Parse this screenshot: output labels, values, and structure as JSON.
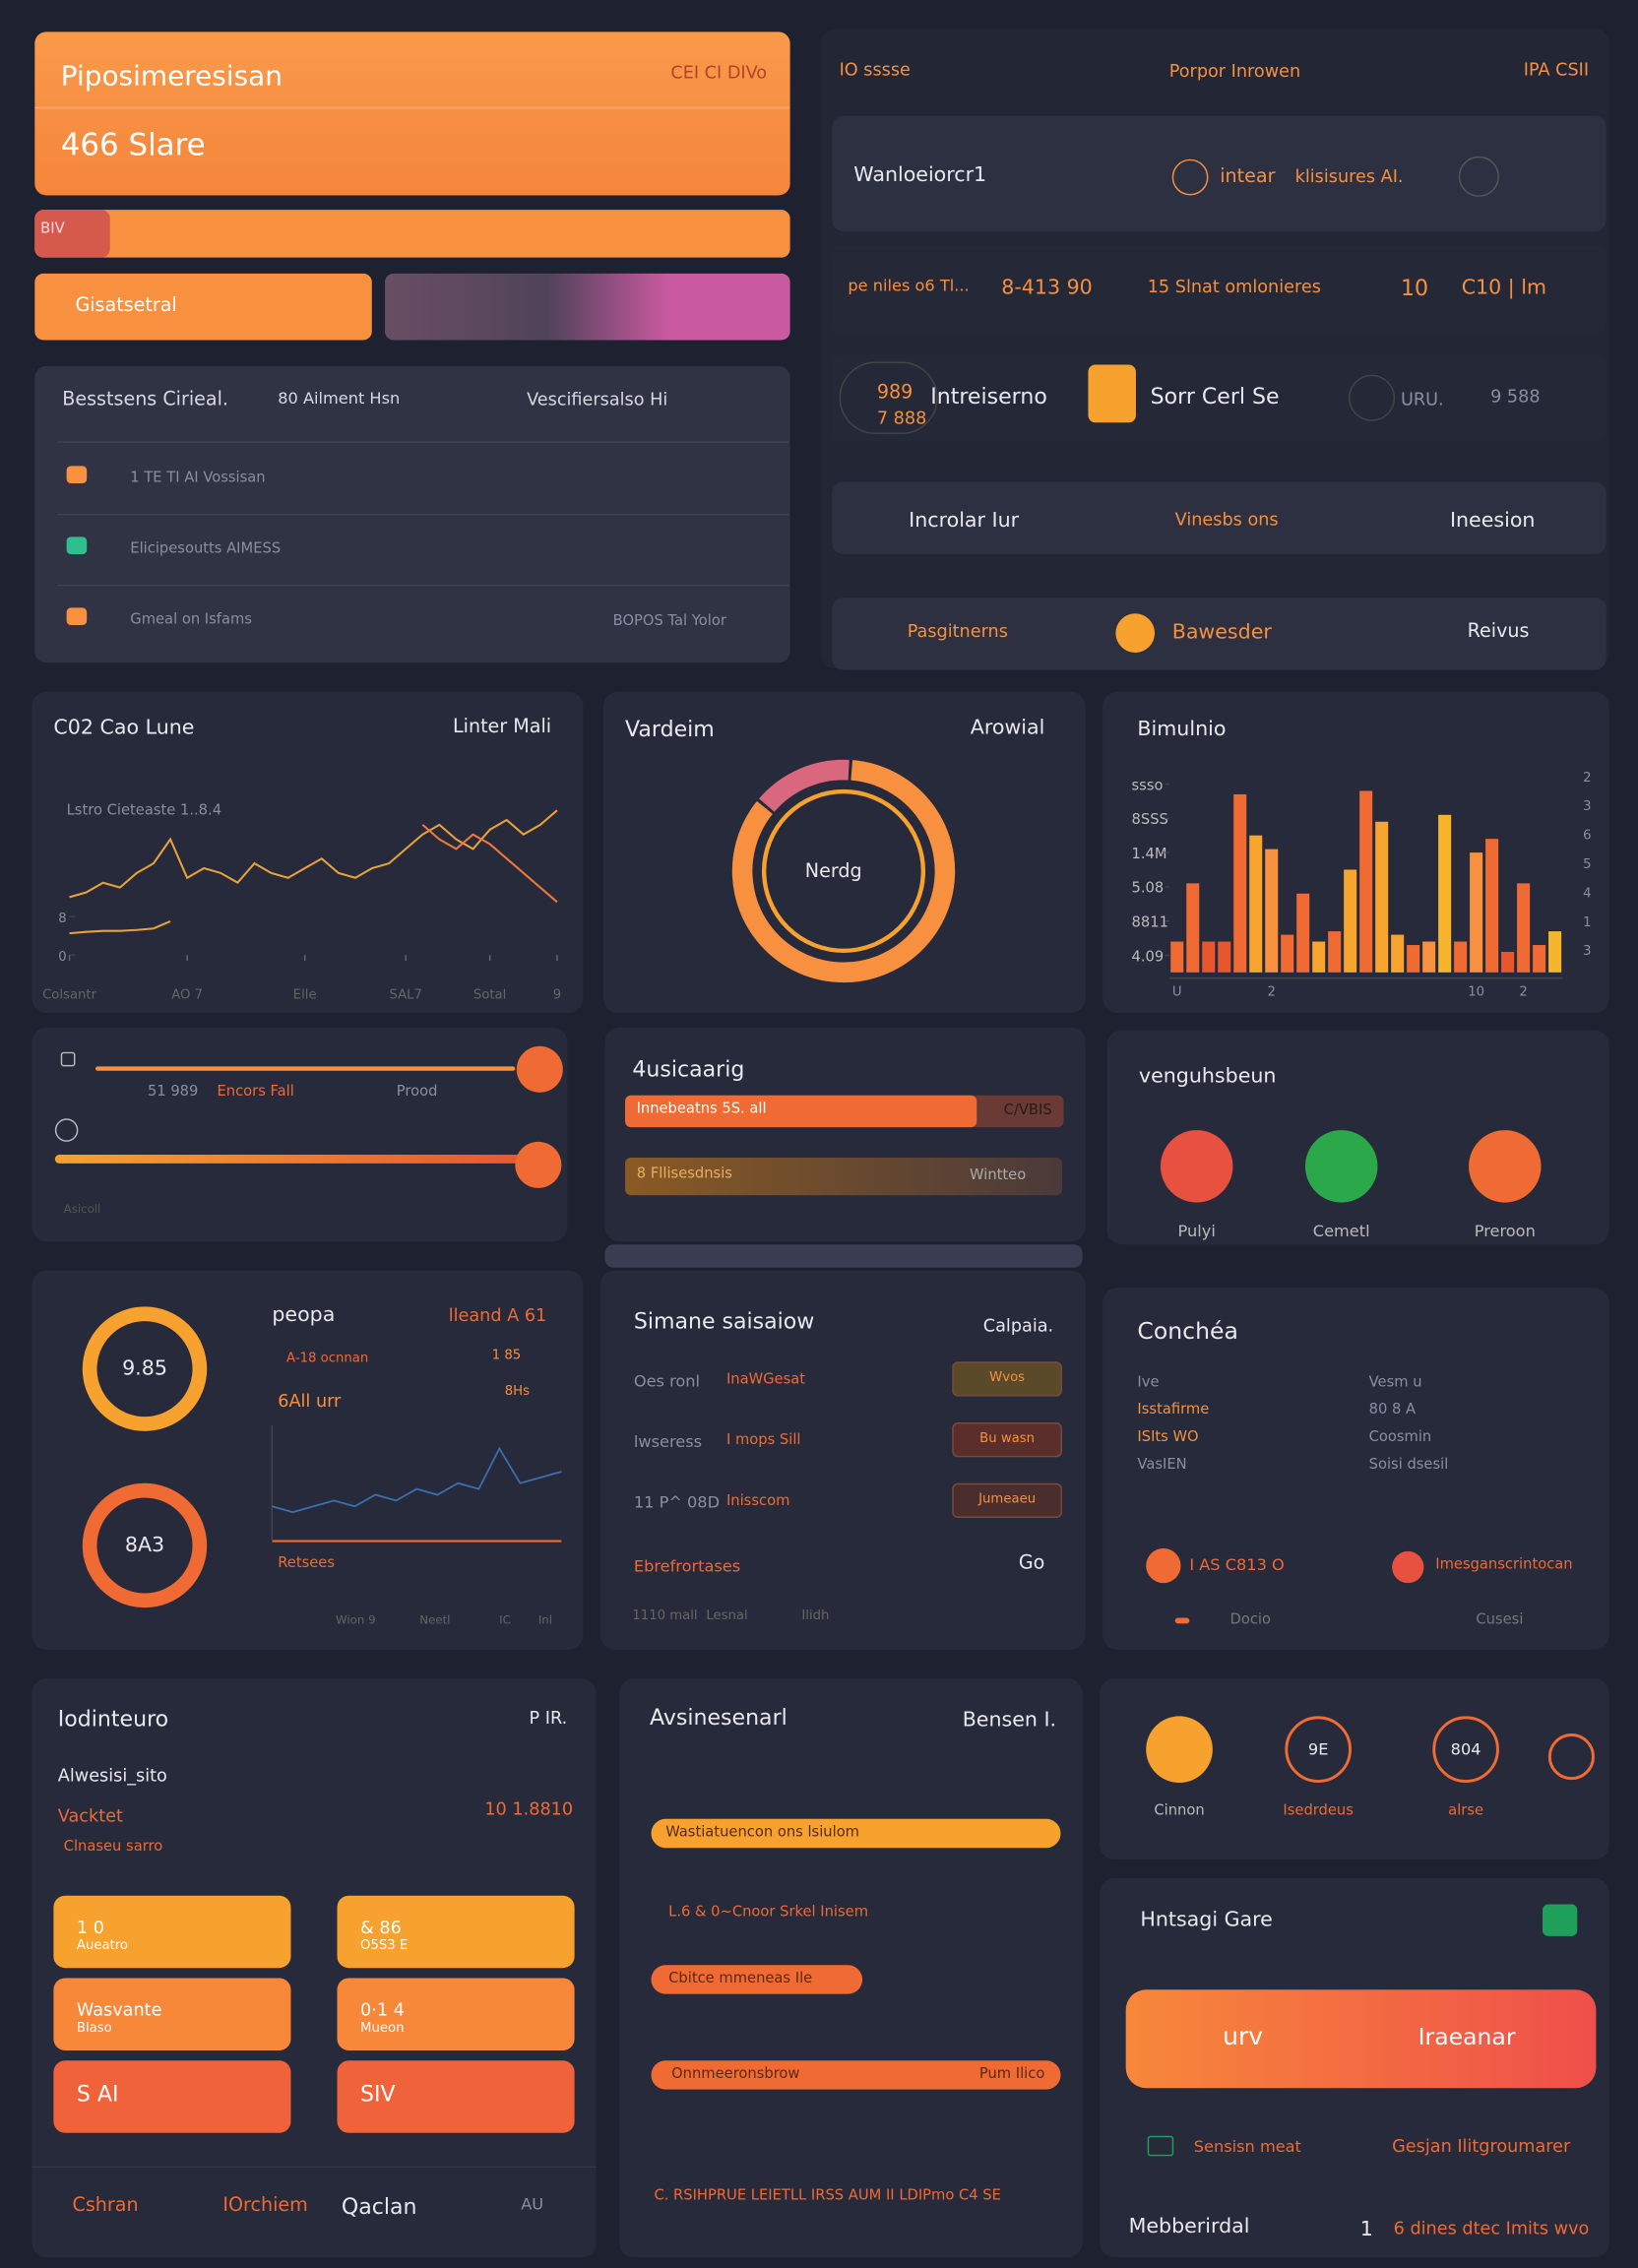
{
  "header": {
    "title": "Piposimeresisan",
    "badge": "CEI CI DIVo",
    "value": "466 Slare"
  },
  "progress_label": "BIV",
  "button": "Gisatsetral",
  "table": {
    "headers": [
      "Besstsens Cirieal.",
      "80 Ailment Hsn",
      "Vescifiersalso Hi"
    ],
    "rows": [
      "1 TE TI AI Vossisan",
      "Elicipesoutts AIMESS",
      "Gmeal on Isfams"
    ],
    "note": "BOPOS Tal Yolor"
  },
  "top_right": {
    "tabs": [
      "IO sssse",
      "Porpor Inrowen",
      "IPA CSII"
    ],
    "search": "Wanloeiorcr1",
    "chips": [
      "intear",
      "klisisures AI."
    ],
    "stats": [
      "pe niles o6 Tl...",
      "8-413 90",
      "15 Slnat omlonieres",
      "10",
      "C10 | lm"
    ],
    "cards": [
      "989",
      "7 888",
      "Intreiserno",
      "Sorr Cerl Se",
      "URU.",
      "9 588"
    ],
    "menu": [
      "Incrolar Iur",
      "Vinesbs ons",
      "Ineesion"
    ],
    "menu2": [
      "Pasgitnerns",
      "Bawesder",
      "Reivus"
    ]
  },
  "chart_data": [
    {
      "type": "line",
      "title": "C02 Cao Lune",
      "subtitle": "Linter Mali",
      "annotation": "Lstro Cieteaste  1..8.4",
      "x": [
        0,
        1,
        2,
        3,
        4,
        5,
        6,
        7,
        8,
        9,
        10,
        11,
        12,
        13,
        14,
        15,
        16,
        17,
        18,
        19,
        20,
        21,
        22,
        23,
        24,
        25,
        26,
        27,
        28,
        29
      ],
      "xlim": [
        0,
        29
      ],
      "xticks": [
        {
          "value": 0,
          "label": "Colsantr"
        },
        {
          "value": 7,
          "label": "AO 7"
        },
        {
          "value": 14,
          "label": "Elle"
        },
        {
          "value": 20,
          "label": "SAL7"
        },
        {
          "value": 25,
          "label": "Sotal"
        },
        {
          "value": 29,
          "label": "9"
        }
      ],
      "ylim": [
        0,
        30
      ],
      "yticks": [
        0,
        8
      ],
      "series": [
        {
          "color": "#e9a23a",
          "values": [
            12,
            13,
            15,
            14,
            17,
            19,
            24,
            16,
            18,
            17,
            15,
            19,
            17,
            16,
            18,
            20,
            17,
            16,
            18,
            19,
            22,
            25,
            27,
            24,
            22,
            26,
            28,
            25,
            27,
            30
          ]
        },
        {
          "color": "#e9a23a",
          "values": [
            4.5,
            4.8,
            5,
            5,
            5.2,
            5.5,
            7,
            null,
            null,
            null,
            null,
            null,
            null,
            null,
            null,
            null,
            null,
            null,
            null,
            null,
            null,
            null,
            null,
            null,
            null,
            null,
            null,
            null,
            null,
            null
          ]
        },
        {
          "color": "#f07a3a",
          "values": [
            null,
            null,
            null,
            null,
            null,
            null,
            null,
            null,
            null,
            null,
            null,
            null,
            null,
            null,
            null,
            null,
            null,
            null,
            null,
            null,
            null,
            27,
            24,
            22,
            25,
            23,
            20,
            17,
            14,
            11
          ]
        }
      ]
    },
    {
      "type": "pie",
      "title": "Vardeim",
      "subtitle": "Arowial",
      "annotation": "Nerdg",
      "values": [
        85,
        15
      ],
      "colors": [
        "#f7903f",
        "#d9677e"
      ]
    },
    {
      "type": "bar",
      "title": "Bimulnio",
      "categories": [
        "U",
        null,
        null,
        null,
        null,
        null,
        "2",
        null,
        null,
        null,
        null,
        null,
        null,
        null,
        null,
        null,
        null,
        null,
        null,
        "10",
        null,
        null,
        "2",
        null,
        null
      ],
      "values": [
        0.9,
        2.6,
        0.9,
        0.9,
        5.2,
        4.0,
        3.6,
        1.1,
        2.3,
        0.9,
        1.2,
        3.0,
        5.3,
        4.4,
        1.1,
        0.8,
        0.9,
        4.6,
        0.9,
        3.5,
        3.9,
        0.6,
        2.6,
        0.8,
        1.2
      ],
      "colors": [
        "#f06a33",
        "#f06a33",
        "#e8562e",
        "#e8562e",
        "#f06a33",
        "#f7a52e",
        "#f7903f",
        "#f06a33",
        "#f06a33",
        "#f7a52e",
        "#f06a33",
        "#f7a52e",
        "#f06a33",
        "#f7a52e",
        "#f7a52e",
        "#f06a33",
        "#f7903f",
        "#f7b52e",
        "#f06a33",
        "#f7903f",
        "#f06a33",
        "#e8562e",
        "#f06a33",
        "#f06a33",
        "#f7b52e"
      ],
      "ylim": [
        0,
        6
      ],
      "yticks": [
        {
          "value": 5.5,
          "label": "ssso"
        },
        {
          "value": 4.5,
          "label": "8SSS"
        },
        {
          "value": 3.5,
          "label": "1.4M"
        },
        {
          "value": 2.5,
          "label": "5.08"
        },
        {
          "value": 1.5,
          "label": "8811"
        },
        {
          "value": 0.5,
          "label": "4.09"
        }
      ],
      "y2_labels": [
        "2",
        "3",
        "6",
        "5",
        "4",
        "1",
        "3"
      ]
    },
    {
      "type": "line",
      "title": "peopa",
      "subtitle": "lleand A 61",
      "values": [
        3,
        2.5,
        3,
        3.5,
        3,
        4,
        3.5,
        4.5,
        4,
        5,
        4.5,
        8,
        5,
        5.5,
        6
      ],
      "color": "#3b6fb0",
      "ylim": [
        0,
        10
      ]
    }
  ],
  "sliders": {
    "labels": [
      "51 989",
      "Encors Fall",
      "Prood"
    ],
    "footer": "Asicoll"
  },
  "progress_panel": {
    "title": "4usicaarig",
    "bars": [
      [
        "lnnebeatns 5S. all",
        "C/VBIS"
      ],
      [
        "8 Fllisesdnsis",
        "Wintteo"
      ]
    ]
  },
  "icons": {
    "title": "venguhsbeun",
    "items": [
      "Pulyi",
      "Cemetl",
      "Preroon"
    ]
  },
  "rings": {
    "values": [
      "9.85",
      "8A3"
    ],
    "lines": [
      "A-18 ocnnan",
      "1 85",
      "6All urr",
      "8Hs"
    ],
    "footer": "Retsees",
    "axis": [
      "Wion 9",
      "Neetl",
      "IC",
      "Inl"
    ]
  },
  "list_panel": {
    "title": "Simane saisaiow",
    "right": "Calpaia.",
    "rows": [
      [
        "Oes ronl",
        "InaWGesat",
        "Wvos"
      ],
      [
        "lwseress",
        "I mops Sill",
        "Bu wasn"
      ],
      [
        "11 P^ 08D",
        "Inisscom",
        "Jumeaeu"
      ]
    ],
    "footer": [
      "Ebrefrortases",
      "Go"
    ],
    "bottom": [
      "1110 mall",
      "Lesnal",
      "Ilidh"
    ]
  },
  "text_panel": {
    "title": "Conchéa",
    "left": [
      "Ive",
      "Isstafirme",
      "ISIts WO",
      "VasIEN"
    ],
    "right": [
      "Vesm u",
      "80 8 A",
      "Coosmin",
      "Soisi dsesil"
    ],
    "chips": [
      "I AS  C813 O",
      "Imesganscrintocan"
    ],
    "footer": [
      "Docio",
      "Cusesi"
    ]
  },
  "bottom_left": {
    "title": "Iodinteuro",
    "right": "P IR.",
    "lines": [
      "Alwesisi_sito",
      "10  1.8810",
      "Vacktet",
      "Clnaseu sarro"
    ],
    "tiles": [
      [
        "1 0",
        "Aueatro"
      ],
      [
        "& 86",
        "O5S3 E"
      ],
      [
        "Wasvante",
        "Blaso"
      ],
      [
        "0·1 4",
        "Mueon"
      ],
      [
        "S AI"
      ],
      [
        "SIV"
      ]
    ],
    "tabs": [
      "Cshran",
      "IOrchiem",
      "Qaclan",
      "AU"
    ]
  },
  "bottom_mid": {
    "title": "Avsinesenarl",
    "right": "Bensen I.",
    "bars": [
      "Wastiatuencon ons lsiulom",
      "L.6 & 0~Cnoor Srkel Inisem",
      "Cbitce mmeneas Ile",
      "Onnmeeronsbrow"
    ],
    "bar_note": "Pum Ilico",
    "footer": "C. RSIHPRUE LEIETLL IRSS AUM   II LDIPmo C4 SE"
  },
  "circles": [
    [
      "Cinnon"
    ],
    [
      "Isedrdeus",
      "9E"
    ],
    [
      "alrse",
      "804"
    ]
  ],
  "bottom_right": {
    "title": "Hntsagi Gare",
    "button": [
      "urv",
      "Iraeanar"
    ],
    "links": [
      "Sensisn meat",
      "Gesjan Ilitgroumarer"
    ],
    "footer": [
      "Mebberirdal",
      "1",
      "6 dines dtec Imits wvo"
    ]
  }
}
